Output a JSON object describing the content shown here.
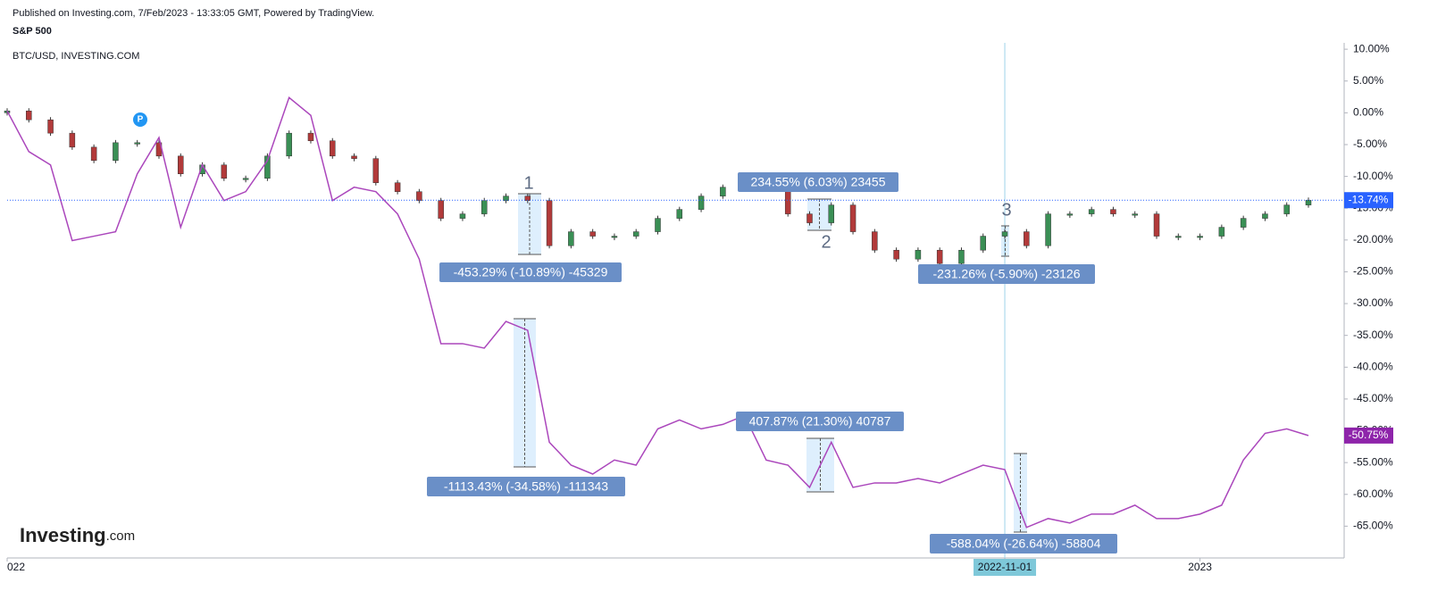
{
  "header": {
    "published": "Published on Investing.com, 7/Feb/2023 - 13:33:05 GMT, Powered by TradingView."
  },
  "logo": [
    "Investing",
    ".com"
  ],
  "marker": "P",
  "chart_data": {
    "type": "candlestick",
    "categories": [
      "022",
      null,
      null,
      null,
      null,
      null,
      null,
      null,
      null,
      null,
      null,
      null,
      null,
      null,
      null,
      null,
      null,
      null,
      null,
      null,
      null,
      null,
      null,
      null,
      null,
      null,
      null,
      null,
      null,
      null,
      null,
      null,
      null,
      null,
      null,
      null,
      null,
      null,
      null,
      null,
      null,
      null,
      null,
      null,
      null,
      null,
      "2022-11-01",
      null,
      null,
      null,
      null,
      null,
      null,
      null,
      null,
      "2023",
      null,
      null,
      null,
      null,
      null
    ],
    "series": [
      {
        "name": "S&P 500",
        "type": "candlestick",
        "up_color": "#3a8f55",
        "down_color": "#b23a3a",
        "open": [
          0,
          0.3,
          -1.1,
          -3.2,
          -5.4,
          -7.5,
          -4.7,
          -4.7,
          -6.8,
          -9.6,
          -8.2,
          -10.3,
          -10.3,
          -6.8,
          -3.2,
          -4.4,
          -6.8,
          -7.2,
          -11.0,
          -12.4,
          -13.8,
          -16.6,
          -15.9,
          -13.8,
          -13.1,
          -13.8,
          -20.9,
          -18.7,
          -19.4,
          -19.4,
          -18.7,
          -16.6,
          -15.2,
          -13.1,
          -11.7,
          -10.3,
          -11.0,
          -15.9,
          -17.3,
          -14.5,
          -18.7,
          -21.6,
          -23.0,
          -21.6,
          -23.7,
          -21.6,
          -19.4,
          -18.7,
          -20.9,
          -15.9,
          -15.9,
          -15.2,
          -15.9,
          -15.9,
          -19.4,
          -19.4,
          -19.4,
          -18.0,
          -16.6,
          -15.9,
          -14.5
        ],
        "close": [
          0.3,
          -1.1,
          -3.2,
          -5.4,
          -7.5,
          -4.7,
          -4.7,
          -6.8,
          -9.6,
          -8.2,
          -10.3,
          -10.3,
          -6.8,
          -3.2,
          -4.4,
          -6.8,
          -7.2,
          -11.0,
          -12.4,
          -13.8,
          -16.6,
          -15.9,
          -13.8,
          -13.1,
          -13.8,
          -20.9,
          -18.7,
          -19.4,
          -19.4,
          -18.7,
          -16.6,
          -15.2,
          -13.1,
          -11.7,
          -10.3,
          -11.0,
          -15.9,
          -17.3,
          -14.5,
          -18.7,
          -21.6,
          -23.0,
          -21.6,
          -23.7,
          -21.6,
          -19.4,
          -18.7,
          -20.9,
          -15.9,
          -15.9,
          -15.2,
          -15.9,
          -15.9,
          -19.4,
          -19.4,
          -19.4,
          -18.0,
          -16.6,
          -15.9,
          -14.5,
          -13.74
        ],
        "last_label": "-13.74%",
        "label_color": "#2962ff"
      },
      {
        "name": "BTC/USD, INVESTING.COM",
        "type": "line",
        "color": "#ab47bc",
        "values": [
          0.3,
          -6.1,
          -8.2,
          -20.1,
          -19.4,
          -18.7,
          -9.6,
          -3.9,
          -18.0,
          -8.2,
          -13.8,
          -12.4,
          -7.5,
          2.4,
          -0.4,
          -13.8,
          -11.7,
          -12.4,
          -15.9,
          -23.0,
          -36.3,
          -36.3,
          -37.0,
          -32.8,
          -34.2,
          -51.8,
          -55.4,
          -56.8,
          -54.6,
          -55.4,
          -49.7,
          -48.3,
          -49.7,
          -49.0,
          -47.6,
          -54.6,
          -55.4,
          -58.9,
          -51.8,
          -58.9,
          -58.2,
          -58.2,
          -57.5,
          -58.2,
          -56.8,
          -55.4,
          -56.1,
          -65.2,
          -63.8,
          -64.5,
          -63.1,
          -63.1,
          -61.7,
          -63.8,
          -63.8,
          -63.1,
          -61.7,
          -54.6,
          -50.4,
          -49.7,
          -50.75
        ],
        "last_label": "-50.75%",
        "label_color": "#8e24aa"
      }
    ],
    "ylim": [
      -70,
      11
    ],
    "yticks": [
      {
        "value": 10,
        "label": "10.00%"
      },
      {
        "value": 5,
        "label": "5.00%"
      },
      {
        "value": 0,
        "label": "0.00%"
      },
      {
        "value": -5,
        "label": "-5.00%"
      },
      {
        "value": -10,
        "label": "-10.00%"
      },
      {
        "value": -15,
        "label": "-15.00%"
      },
      {
        "value": -20,
        "label": "-20.00%"
      },
      {
        "value": -25,
        "label": "-25.00%"
      },
      {
        "value": -30,
        "label": "-30.00%"
      },
      {
        "value": -35,
        "label": "-35.00%"
      },
      {
        "value": -40,
        "label": "-40.00%"
      },
      {
        "value": -45,
        "label": "-45.00%"
      },
      {
        "value": -50,
        "label": "-50.00%"
      },
      {
        "value": -55,
        "label": "-55.00%"
      },
      {
        "value": -60,
        "label": "-60.00%"
      },
      {
        "value": -65,
        "label": "-65.00%"
      }
    ],
    "annotations": [
      "-453.29% (-10.89%) -45329",
      "234.55% (6.03%) 23455",
      "-231.26% (-5.90%) -23126",
      "-1113.43% (-34.58%) -111343",
      "407.87% (21.30%) 40787",
      "-588.04% (-26.64%) -58804"
    ],
    "waves": [
      "1",
      "2",
      "3"
    ]
  }
}
